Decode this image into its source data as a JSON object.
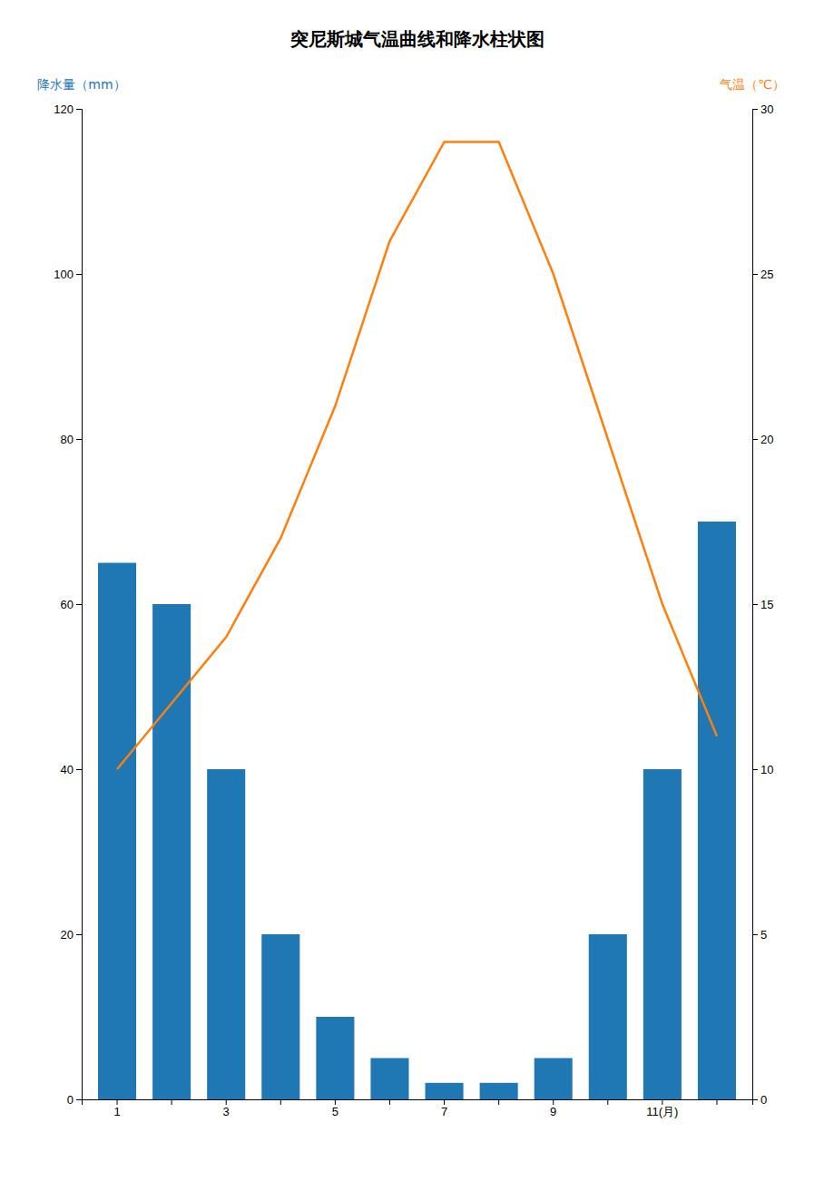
{
  "chart_data": {
    "type": "bar",
    "title": "突尼斯城气温曲线和降水柱状图",
    "y_label": "降水量（mm）",
    "y2_label": "气温（℃）",
    "categories": [
      "1",
      null,
      "3",
      null,
      "5",
      null,
      "7",
      null,
      "9",
      null,
      "11(月)",
      null
    ],
    "series": [
      {
        "type": "bar",
        "values": [
          65,
          60,
          40,
          20,
          10,
          5,
          2,
          2,
          5,
          20,
          40,
          70
        ]
      },
      {
        "type": "line",
        "axis": "y2",
        "values": [
          10,
          12,
          14,
          17,
          21,
          26,
          29,
          29,
          25,
          20,
          15,
          11
        ]
      }
    ],
    "ylim": [
      0,
      120
    ],
    "yticks": [
      0,
      20,
      40,
      60,
      80,
      100,
      120
    ],
    "y2lim": [
      0,
      30
    ],
    "y2ticks": [
      0,
      5,
      10,
      15,
      20,
      25,
      30
    ],
    "grid": false
  }
}
